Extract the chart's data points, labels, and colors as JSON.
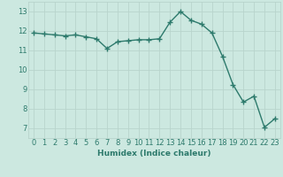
{
  "xlabel": "Humidex (Indice chaleur)",
  "x": [
    0,
    1,
    2,
    3,
    4,
    5,
    6,
    7,
    8,
    9,
    10,
    11,
    12,
    13,
    14,
    15,
    16,
    17,
    18,
    19,
    20,
    21,
    22,
    23
  ],
  "y": [
    11.9,
    11.85,
    11.8,
    11.75,
    11.8,
    11.7,
    11.6,
    11.1,
    11.45,
    11.5,
    11.55,
    11.55,
    11.6,
    12.45,
    13.0,
    12.55,
    12.35,
    11.9,
    10.7,
    9.25,
    8.35,
    8.65,
    7.05,
    7.5
  ],
  "line_color": "#2d7a6c",
  "marker": "+",
  "marker_size": 4,
  "line_width": 1.0,
  "bg_color": "#cce8e0",
  "grid_color": "#b8d4cc",
  "tick_color": "#2d7a6c",
  "label_color": "#2d7a6c",
  "ylim": [
    6.5,
    13.5
  ],
  "yticks": [
    7,
    8,
    9,
    10,
    11,
    12,
    13
  ],
  "xlim": [
    -0.5,
    23.5
  ],
  "xticks": [
    0,
    1,
    2,
    3,
    4,
    5,
    6,
    7,
    8,
    9,
    10,
    11,
    12,
    13,
    14,
    15,
    16,
    17,
    18,
    19,
    20,
    21,
    22,
    23
  ],
  "axis_fontsize": 6.5,
  "tick_fontsize": 6.0
}
